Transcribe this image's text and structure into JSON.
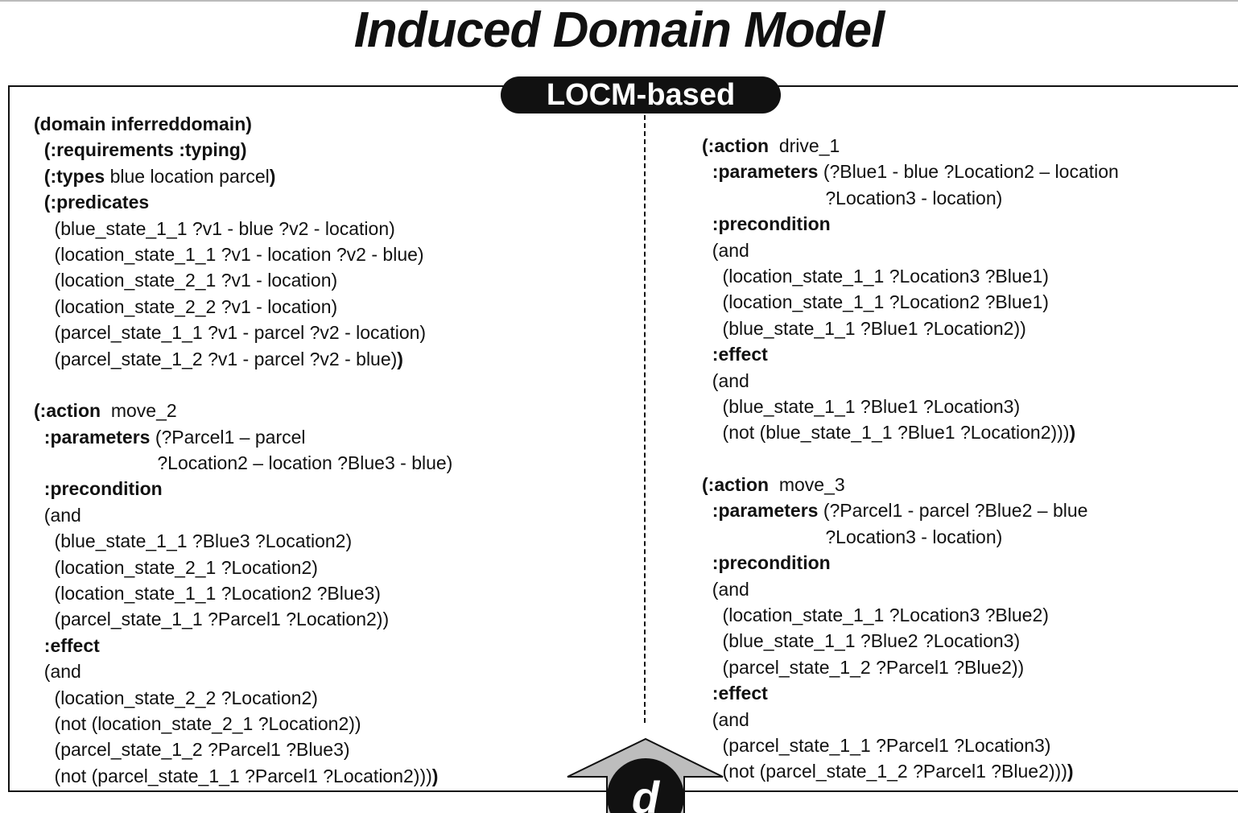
{
  "title": "Induced Domain Model",
  "badge": "LOCM-based",
  "arrow_label": "d",
  "left_lines": [
    [
      {
        "t": "(domain inferreddomain)",
        "b": true
      }
    ],
    [
      {
        "t": "  (:requirements :typing)",
        "b": true
      }
    ],
    [
      {
        "t": "  (:types",
        "b": true
      },
      {
        "t": " blue location parcel",
        "b": false
      },
      {
        "t": ")",
        "b": true
      }
    ],
    [
      {
        "t": "  (:predicates",
        "b": true
      }
    ],
    [
      {
        "t": "    (blue_state_1_1 ?v1 - blue ?v2 - location)",
        "b": false
      }
    ],
    [
      {
        "t": "    (location_state_1_1 ?v1 - location ?v2 - blue)",
        "b": false
      }
    ],
    [
      {
        "t": "    (location_state_2_1 ?v1 - location)",
        "b": false
      }
    ],
    [
      {
        "t": "    (location_state_2_2 ?v1 - location)",
        "b": false
      }
    ],
    [
      {
        "t": "    (parcel_state_1_1 ?v1 - parcel ?v2 - location)",
        "b": false
      }
    ],
    [
      {
        "t": "    (parcel_state_1_2 ?v1 - parcel ?v2 - blue)",
        "b": false
      },
      {
        "t": ")",
        "b": true
      }
    ],
    null,
    [
      {
        "t": "(:action",
        "b": true
      },
      {
        "t": "  move_2",
        "b": false
      }
    ],
    [
      {
        "t": "  :parameters",
        "b": true
      },
      {
        "t": " (?Parcel1 – parcel",
        "b": false
      }
    ],
    [
      {
        "t": "                        ?Location2 – location ?Blue3 - blue)",
        "b": false
      }
    ],
    [
      {
        "t": "  :precondition",
        "b": true
      }
    ],
    [
      {
        "t": "  (and",
        "b": false
      }
    ],
    [
      {
        "t": "    (blue_state_1_1 ?Blue3 ?Location2)",
        "b": false
      }
    ],
    [
      {
        "t": "    (location_state_2_1 ?Location2)",
        "b": false
      }
    ],
    [
      {
        "t": "    (location_state_1_1 ?Location2 ?Blue3)",
        "b": false
      }
    ],
    [
      {
        "t": "    (parcel_state_1_1 ?Parcel1 ?Location2))",
        "b": false
      }
    ],
    [
      {
        "t": "  :effect",
        "b": true
      }
    ],
    [
      {
        "t": "  (and",
        "b": false
      }
    ],
    [
      {
        "t": "    (location_state_2_2 ?Location2)",
        "b": false
      }
    ],
    [
      {
        "t": "    (not (location_state_2_1 ?Location2))",
        "b": false
      }
    ],
    [
      {
        "t": "    (parcel_state_1_2 ?Parcel1 ?Blue3)",
        "b": false
      }
    ],
    [
      {
        "t": "    (not (parcel_state_1_1 ?Parcel1 ?Location2)))",
        "b": false
      },
      {
        "t": ")",
        "b": true
      }
    ]
  ],
  "right_lines": [
    [
      {
        "t": "(:action",
        "b": true
      },
      {
        "t": "  drive_1",
        "b": false
      }
    ],
    [
      {
        "t": "  :parameters",
        "b": true
      },
      {
        "t": " (?Blue1 - blue ?Location2 – location",
        "b": false
      }
    ],
    [
      {
        "t": "                        ?Location3 - location)",
        "b": false
      }
    ],
    [
      {
        "t": "  :precondition",
        "b": true
      }
    ],
    [
      {
        "t": "  (and",
        "b": false
      }
    ],
    [
      {
        "t": "    (location_state_1_1 ?Location3 ?Blue1)",
        "b": false
      }
    ],
    [
      {
        "t": "    (location_state_1_1 ?Location2 ?Blue1)",
        "b": false
      }
    ],
    [
      {
        "t": "    (blue_state_1_1 ?Blue1 ?Location2))",
        "b": false
      }
    ],
    [
      {
        "t": "  :effect",
        "b": true
      }
    ],
    [
      {
        "t": "  (and",
        "b": false
      }
    ],
    [
      {
        "t": "    (blue_state_1_1 ?Blue1 ?Location3)",
        "b": false
      }
    ],
    [
      {
        "t": "    (not (blue_state_1_1 ?Blue1 ?Location2)))",
        "b": false
      },
      {
        "t": ")",
        "b": true
      }
    ],
    null,
    [
      {
        "t": "(:action",
        "b": true
      },
      {
        "t": "  move_3",
        "b": false
      }
    ],
    [
      {
        "t": "  :parameters",
        "b": true
      },
      {
        "t": " (?Parcel1 - parcel ?Blue2 – blue",
        "b": false
      }
    ],
    [
      {
        "t": "                        ?Location3 - location)",
        "b": false
      }
    ],
    [
      {
        "t": "  :precondition",
        "b": true
      }
    ],
    [
      {
        "t": "  (and",
        "b": false
      }
    ],
    [
      {
        "t": "    (location_state_1_1 ?Location3 ?Blue2)",
        "b": false
      }
    ],
    [
      {
        "t": "    (blue_state_1_1 ?Blue2 ?Location3)",
        "b": false
      }
    ],
    [
      {
        "t": "    (parcel_state_1_2 ?Parcel1 ?Blue2))",
        "b": false
      }
    ],
    [
      {
        "t": "  :effect",
        "b": true
      }
    ],
    [
      {
        "t": "  (and",
        "b": false
      }
    ],
    [
      {
        "t": "    (parcel_state_1_1 ?Parcel1 ?Location3)",
        "b": false
      }
    ],
    [
      {
        "t": "    (not (parcel_state_1_2 ?Parcel1 ?Blue2)))",
        "b": false
      },
      {
        "t": ")",
        "b": true
      }
    ]
  ]
}
